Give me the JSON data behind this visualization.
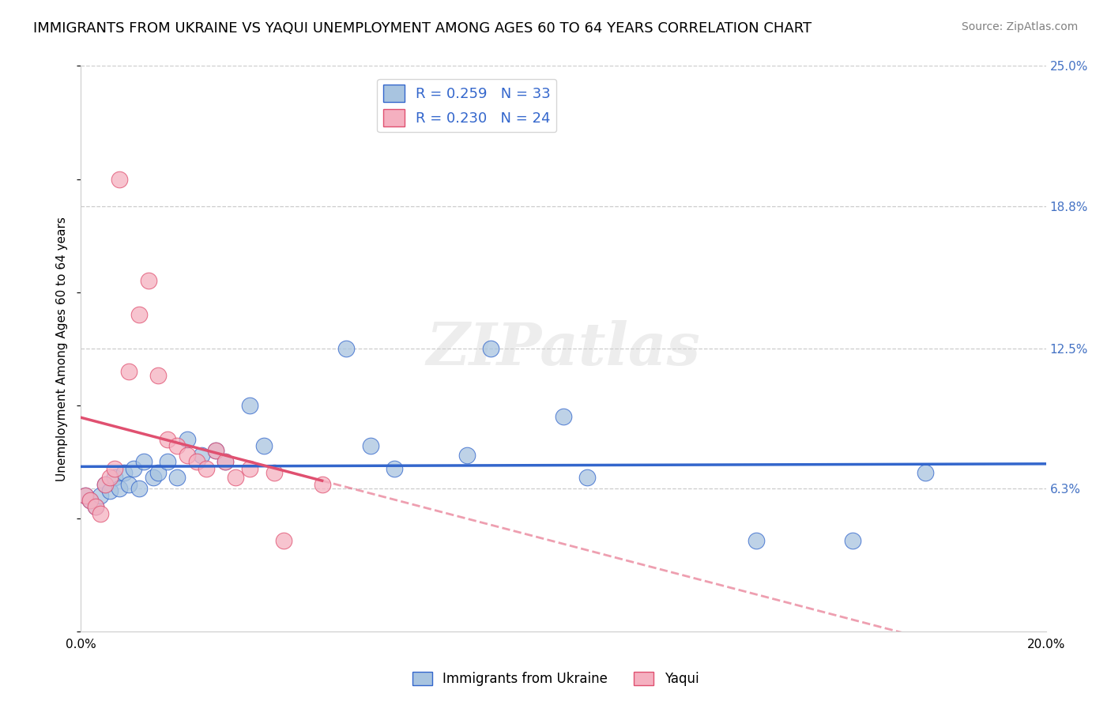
{
  "title": "IMMIGRANTS FROM UKRAINE VS YAQUI UNEMPLOYMENT AMONG AGES 60 TO 64 YEARS CORRELATION CHART",
  "source": "Source: ZipAtlas.com",
  "ylabel": "Unemployment Among Ages 60 to 64 years",
  "xlim": [
    0.0,
    0.2
  ],
  "ylim": [
    0.0,
    0.25
  ],
  "y_tick_labels_right": [
    "6.3%",
    "12.5%",
    "18.8%",
    "25.0%"
  ],
  "y_ticks_right": [
    0.063,
    0.125,
    0.188,
    0.25
  ],
  "legend_labels": [
    "Immigrants from Ukraine",
    "Yaqui"
  ],
  "ukraine_color": "#a8c4e0",
  "ukraine_line_color": "#3366cc",
  "yaqui_color": "#f5b0c0",
  "yaqui_line_color": "#e05070",
  "R_ukraine": 0.259,
  "N_ukraine": 33,
  "R_yaqui": 0.23,
  "N_yaqui": 24,
  "ukraine_x": [
    0.001,
    0.002,
    0.003,
    0.004,
    0.005,
    0.006,
    0.007,
    0.008,
    0.009,
    0.01,
    0.011,
    0.012,
    0.013,
    0.015,
    0.016,
    0.018,
    0.02,
    0.022,
    0.025,
    0.028,
    0.03,
    0.035,
    0.038,
    0.055,
    0.06,
    0.065,
    0.08,
    0.085,
    0.1,
    0.105,
    0.14,
    0.16,
    0.175
  ],
  "ukraine_y": [
    0.06,
    0.058,
    0.055,
    0.06,
    0.065,
    0.062,
    0.068,
    0.063,
    0.07,
    0.065,
    0.072,
    0.063,
    0.075,
    0.068,
    0.07,
    0.075,
    0.068,
    0.085,
    0.078,
    0.08,
    0.075,
    0.1,
    0.082,
    0.125,
    0.082,
    0.072,
    0.078,
    0.125,
    0.095,
    0.068,
    0.04,
    0.04,
    0.07
  ],
  "yaqui_x": [
    0.001,
    0.002,
    0.003,
    0.004,
    0.005,
    0.006,
    0.007,
    0.008,
    0.01,
    0.012,
    0.014,
    0.016,
    0.018,
    0.02,
    0.022,
    0.024,
    0.026,
    0.028,
    0.03,
    0.032,
    0.035,
    0.04,
    0.042,
    0.05
  ],
  "yaqui_y": [
    0.06,
    0.058,
    0.055,
    0.052,
    0.065,
    0.068,
    0.072,
    0.2,
    0.115,
    0.14,
    0.155,
    0.113,
    0.085,
    0.082,
    0.078,
    0.075,
    0.072,
    0.08,
    0.075,
    0.068,
    0.072,
    0.07,
    0.04,
    0.065
  ],
  "watermark": "ZIPatlas",
  "grid_color": "#cccccc",
  "background_color": "#ffffff",
  "title_fontsize": 13,
  "axis_label_fontsize": 11,
  "tick_fontsize": 11
}
